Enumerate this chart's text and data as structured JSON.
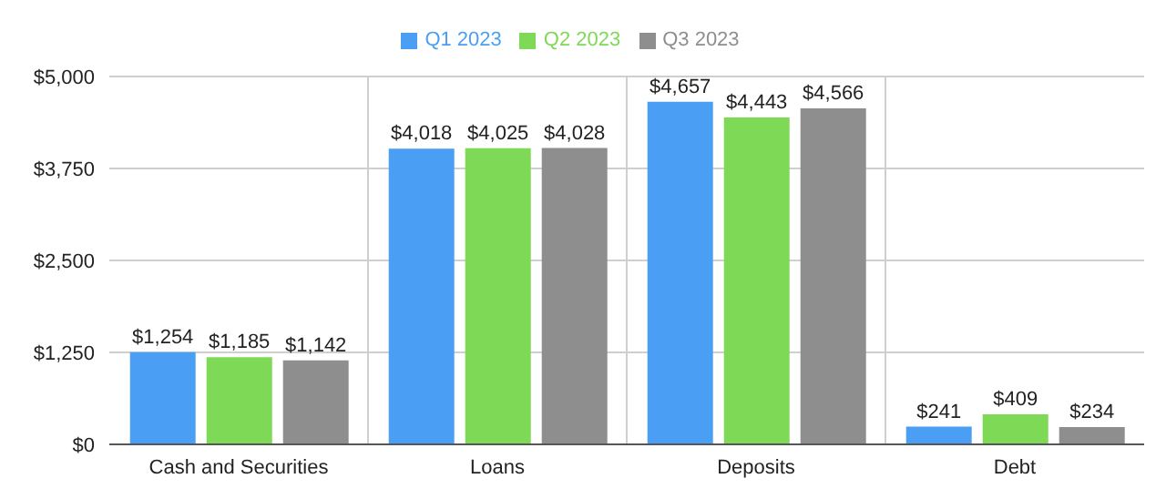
{
  "chart_data": {
    "type": "bar",
    "categories": [
      "Cash and Securities",
      "Loans",
      "Deposits",
      "Debt"
    ],
    "series": [
      {
        "name": "Q1 2023",
        "color": "#4a9ff5",
        "values": [
          1254,
          4018,
          4657,
          241
        ],
        "value_labels": [
          "$1,254",
          "$4,018",
          "$4,657",
          "$241"
        ]
      },
      {
        "name": "Q2 2023",
        "color": "#7ed957",
        "values": [
          1185,
          4025,
          4443,
          409
        ],
        "value_labels": [
          "$1,185",
          "$4,025",
          "$4,443",
          "$409"
        ]
      },
      {
        "name": "Q3 2023",
        "color": "#8e8e8e",
        "values": [
          1142,
          4028,
          4566,
          234
        ],
        "value_labels": [
          "$1,142",
          "$4,028",
          "$4,566",
          "$234"
        ]
      }
    ],
    "ylim": [
      0,
      5000
    ],
    "yticks": [
      {
        "value": 0,
        "label": "$0"
      },
      {
        "value": 1250,
        "label": "$1,250"
      },
      {
        "value": 2500,
        "label": "$2,500"
      },
      {
        "value": 3750,
        "label": "$3,750"
      },
      {
        "value": 5000,
        "label": "$5,000"
      }
    ],
    "grid": true,
    "legend": "top"
  }
}
